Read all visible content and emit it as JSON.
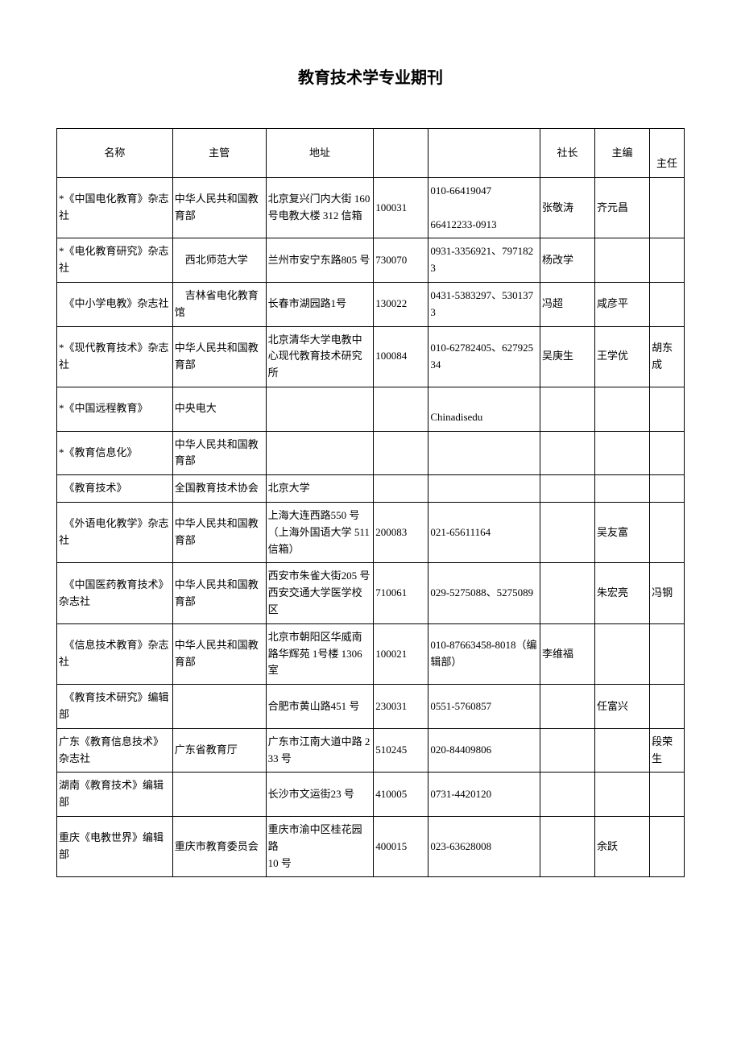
{
  "title": "教育技术学专业期刊",
  "columns": [
    "名称",
    "主管",
    "地址",
    "",
    "",
    "社长",
    "主编",
    "主任"
  ],
  "rows": [
    [
      "*《中国电化教育》杂志社",
      "中华人民共和国教育部",
      "北京复兴门内大街 160 号电教大楼 312 信箱",
      "100031",
      "010-66419047\n\n66412233-0913",
      "张敬涛",
      "齐元昌",
      ""
    ],
    [
      "*《电化教育研究》杂志社",
      "　西北师范大学",
      "兰州市安宁东路805 号",
      "730070",
      "0931-3356921、7971823",
      "杨改学",
      "",
      ""
    ],
    [
      "　《中小学电教》杂志社",
      "　吉林省电化教育馆",
      "长春市湖园路1号",
      "130022",
      "0431-5383297、5301373",
      "冯超",
      "咸彦平",
      ""
    ],
    [
      "*《现代教育技术》杂志社",
      "中华人民共和国教育部",
      "北京清华大学电教中心现代教育技术研究所",
      "100084",
      "010-62782405、62792534",
      "吴庚生",
      "王学优",
      "胡东成"
    ],
    [
      "*《中国远程教育》",
      "中央电大",
      "",
      "",
      "\nChinadisedu",
      "",
      "",
      ""
    ],
    [
      "*《教育信息化》",
      "中华人民共和国教育部",
      "",
      "",
      "",
      "",
      "",
      ""
    ],
    [
      "　《教育技术》",
      "全国教育技术协会",
      "北京大学",
      "",
      "",
      "",
      "",
      ""
    ],
    [
      "　《外语电化教学》杂志社",
      "中华人民共和国教育部",
      "上海大连西路550 号（上海外国语大学 511 信箱）",
      "200083",
      "021-65611164",
      "",
      "吴友富",
      ""
    ],
    [
      "　《中国医药教育技术》杂志社",
      "中华人民共和国教育部",
      "西安市朱雀大街205 号西安交通大学医学校区",
      "710061",
      "029-5275088、5275089",
      "",
      "朱宏亮",
      "冯钢"
    ],
    [
      "　《信息技术教育》杂志社",
      "中华人民共和国教育部",
      "北京市朝阳区华威南路华辉苑 1号楼 1306 室",
      "100021",
      "010-87663458-8018（编辑部）",
      "李维福",
      "",
      ""
    ],
    [
      "　《教育技术研究》编辑部",
      "",
      "合肥市黄山路451 号",
      "230031",
      "0551-5760857",
      "",
      "任富兴",
      ""
    ],
    [
      "广东《教育信息技术》杂志社",
      "广东省教育厅",
      "广东市江南大道中路 233 号",
      "510245",
      "020-84409806",
      "",
      "",
      "段荣生"
    ],
    [
      "湖南《教育技术》编辑部",
      "",
      "长沙市文运街23 号",
      "410005",
      "0731-4420120",
      "",
      "",
      ""
    ],
    [
      "重庆《电教世界》编辑部",
      "重庆市教育委员会",
      "重庆市渝中区桂花园路\n10 号",
      "400015",
      "023-63628008",
      "",
      "余跃",
      ""
    ]
  ]
}
